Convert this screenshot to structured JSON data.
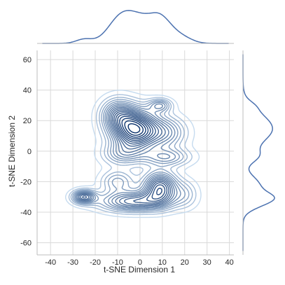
{
  "chart_data": {
    "type": "kde-joint",
    "xlabel": "t-SNE Dimension 1",
    "ylabel": "t-SNE Dimension 2",
    "xlim": [
      -46,
      42
    ],
    "ylim": [
      -68,
      66
    ],
    "x_ticks": [
      -40,
      -30,
      -20,
      -10,
      0,
      10,
      20,
      30,
      40
    ],
    "y_ticks": [
      -60,
      -40,
      -20,
      0,
      20,
      40,
      60
    ],
    "grid": true,
    "contour_levels": 18,
    "colors": {
      "line": "#4c72b0",
      "grid": "#d9d9d9",
      "contour_dark": "#08306b",
      "contour_light": "#c6dbef"
    },
    "clusters": [
      {
        "x": -2,
        "y": 14,
        "sx": 7,
        "sy": 9,
        "weight": 1.0
      },
      {
        "x": -10,
        "y": 24,
        "sx": 5,
        "sy": 7,
        "weight": 0.45
      },
      {
        "x": 9,
        "y": 30,
        "sx": 3.5,
        "sy": 3,
        "weight": 0.35
      },
      {
        "x": 12,
        "y": 12,
        "sx": 6,
        "sy": 7,
        "weight": 0.35
      },
      {
        "x": 12,
        "y": -4,
        "sx": 7,
        "sy": 4,
        "weight": 0.35
      },
      {
        "x": -8,
        "y": -2,
        "sx": 6,
        "sy": 5,
        "weight": 0.3
      },
      {
        "x": 9,
        "y": -24,
        "sx": 5,
        "sy": 7,
        "weight": 0.75
      },
      {
        "x": -3,
        "y": -33,
        "sx": 10,
        "sy": 4.5,
        "weight": 0.6
      },
      {
        "x": -10,
        "y": -20,
        "sx": 5,
        "sy": 5,
        "weight": 0.3
      },
      {
        "x": -25,
        "y": -30,
        "sx": 3.5,
        "sy": 3,
        "weight": 0.6
      },
      {
        "x": 20,
        "y": -28,
        "sx": 4,
        "sy": 6,
        "weight": 0.2
      }
    ]
  }
}
